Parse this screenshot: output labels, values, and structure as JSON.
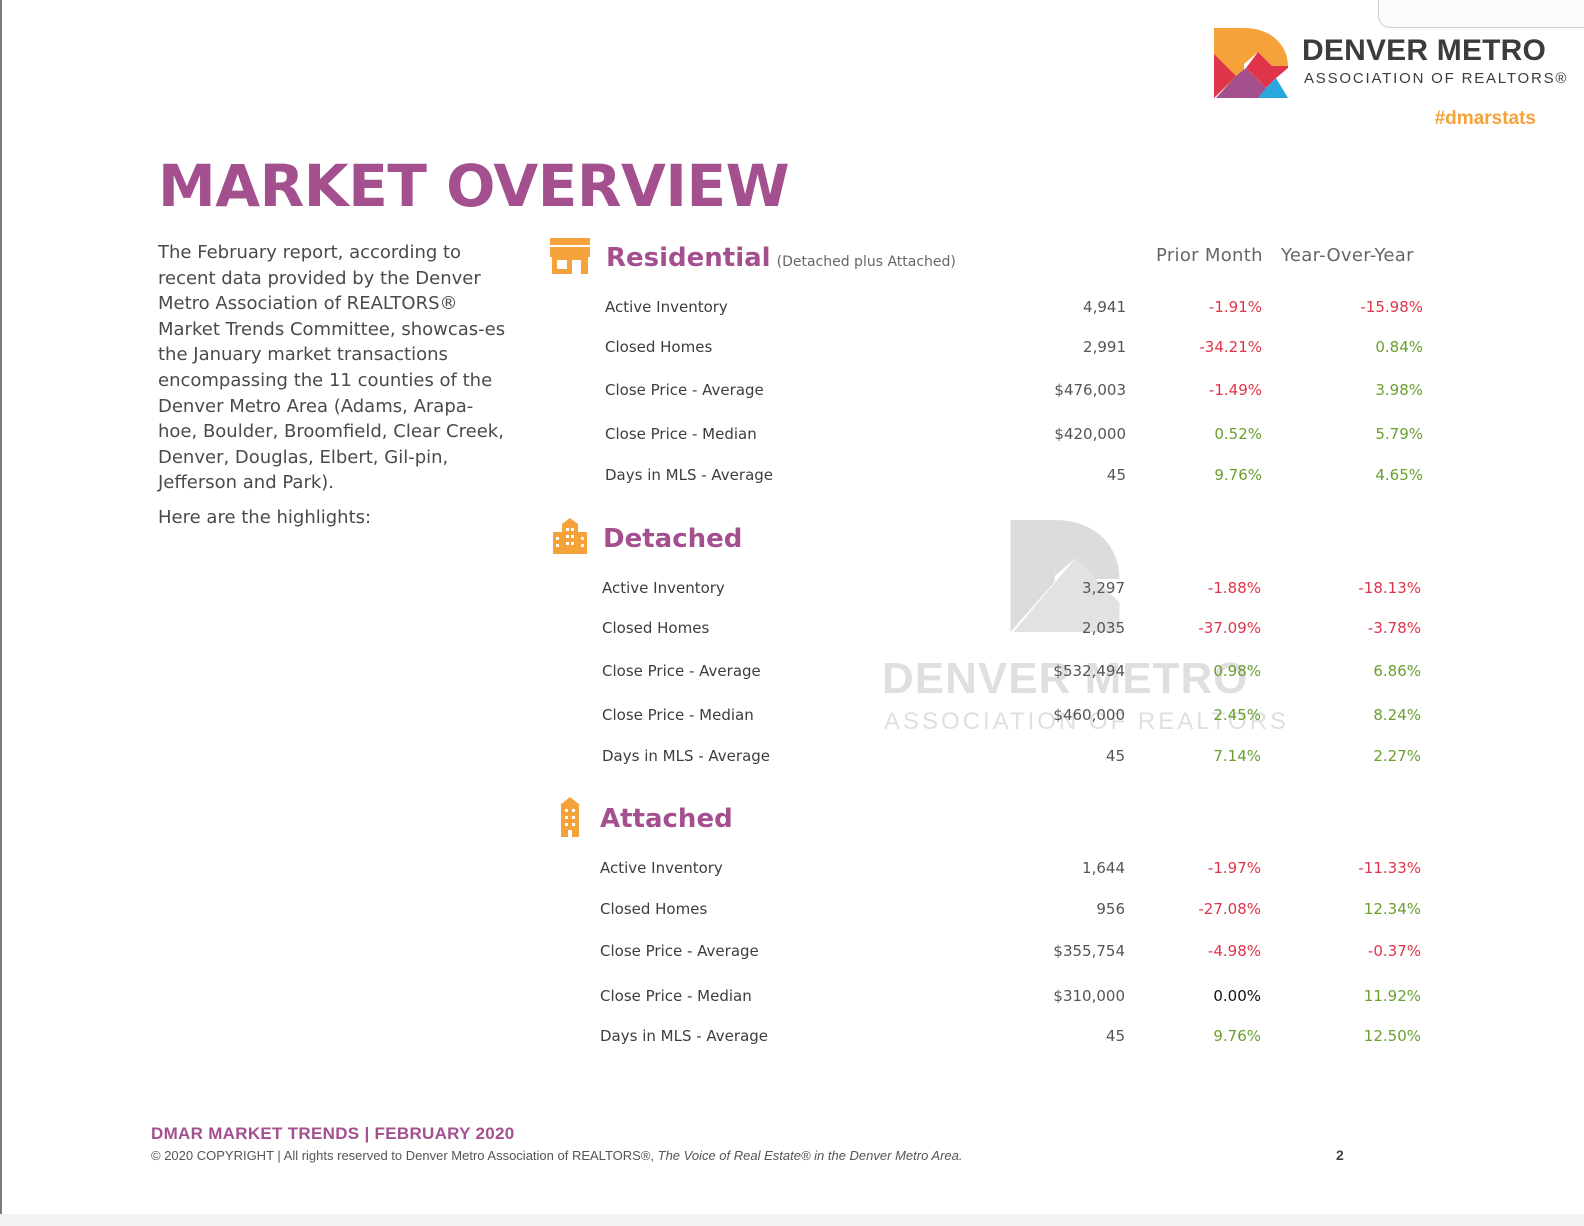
{
  "brand": {
    "name": "DENVER METRO",
    "sub": "ASSOCIATION OF REALTORS®",
    "hashtag": "#dmarstats",
    "colors": {
      "orange": "#F5A23A",
      "red": "#E0344A",
      "purple": "#A4508F",
      "blue": "#29A8E0"
    }
  },
  "page": {
    "title": "MARKET OVERVIEW",
    "intro": "The February report, according to recent data provided by the Denver Metro Association of REALTORS® Market Trends Committee, showcas-es the January market transactions encompassing the 11 counties of the Denver Metro Area (Adams, Arapa-hoe, Boulder, Broomfield, Clear Creek, Denver, Douglas, Elbert, Gil-pin, Jefferson and Park).",
    "highlights": "Here are the highlights:"
  },
  "columns": {
    "prior_month": "Prior Month",
    "yoy": "Year-Over-Year"
  },
  "sections": [
    {
      "title": "Residential",
      "subtitle": "(Detached plus Attached)",
      "icon": "storefront-icon",
      "rows": [
        {
          "label": "Active Inventory",
          "value": "4,941",
          "pm": "-1.91%",
          "yoy": "-15.98%"
        },
        {
          "label": "Closed Homes",
          "value": "2,991",
          "pm": "-34.21%",
          "yoy": "0.84%"
        },
        {
          "label": "Close Price - Average",
          "value": "$476,003",
          "pm": "-1.49%",
          "yoy": "3.98%"
        },
        {
          "label": "Close Price - Median",
          "value": "$420,000",
          "pm": "0.52%",
          "yoy": "5.79%"
        },
        {
          "label": "Days in MLS - Average",
          "value": "45",
          "pm": "9.76%",
          "yoy": "4.65%"
        }
      ]
    },
    {
      "title": "Detached",
      "subtitle": "",
      "icon": "building-icon",
      "rows": [
        {
          "label": "Active Inventory",
          "value": "3,297",
          "pm": "-1.88%",
          "yoy": "-18.13%"
        },
        {
          "label": "Closed Homes",
          "value": "2,035",
          "pm": "-37.09%",
          "yoy": "-3.78%"
        },
        {
          "label": "Close Price - Average",
          "value": "$532,494",
          "pm": "0.98%",
          "yoy": "6.86%"
        },
        {
          "label": "Close Price - Median",
          "value": "$460,000",
          "pm": "2.45%",
          "yoy": "8.24%"
        },
        {
          "label": "Days in MLS - Average",
          "value": "45",
          "pm": "7.14%",
          "yoy": "2.27%"
        }
      ]
    },
    {
      "title": "Attached",
      "subtitle": "",
      "icon": "tower-icon",
      "rows": [
        {
          "label": "Active Inventory",
          "value": "1,644",
          "pm": "-1.97%",
          "yoy": "-11.33%"
        },
        {
          "label": "Closed Homes",
          "value": "956",
          "pm": "-27.08%",
          "yoy": "12.34%"
        },
        {
          "label": "Close Price - Average",
          "value": "$355,754",
          "pm": "-4.98%",
          "yoy": "-0.37%"
        },
        {
          "label": "Close Price - Median",
          "value": "$310,000",
          "pm": "0.00%",
          "yoy": "11.92%"
        },
        {
          "label": "Days in MLS - Average",
          "value": "45",
          "pm": "9.76%",
          "yoy": "12.50%"
        }
      ]
    }
  ],
  "watermark": {
    "name": "DENVER METRO",
    "sub": "ASSOCIATION OF REALTORS"
  },
  "footer": {
    "title": "DMAR MARKET TRENDS | FEBRUARY 2020",
    "copyright": "© 2020 COPYRIGHT | All rights reserved to Denver Metro Association of REALTORS®, ",
    "tagline": "The Voice of Real Estate® in the Denver Metro Area.",
    "page_number": "2"
  }
}
